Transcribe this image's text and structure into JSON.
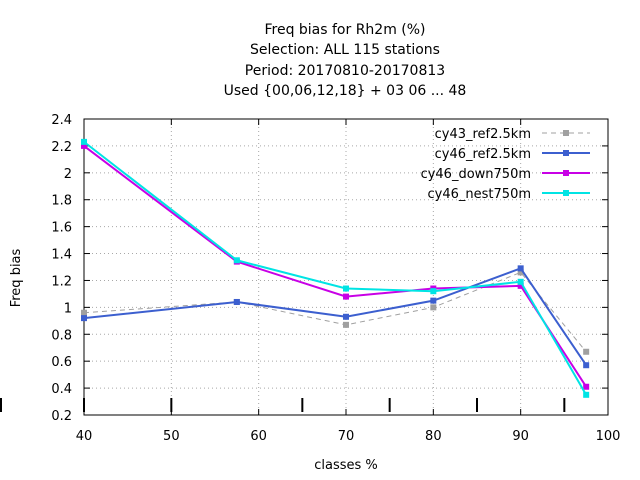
{
  "chart_data": {
    "type": "line",
    "title_lines": [
      "Freq bias  for Rh2m (%)",
      "Selection: ALL     115 stations",
      "Period: 20170810-20170813",
      "Used {00,06,12,18} + 03 06 ... 48"
    ],
    "xlabel": "classes %",
    "ylabel": "Freq bias",
    "xlim": [
      40,
      100
    ],
    "ylim": [
      0.2,
      2.4
    ],
    "x_ticks": [
      40,
      50,
      60,
      70,
      80,
      90,
      100
    ],
    "y_ticks": [
      0.2,
      0.4,
      0.6,
      0.8,
      1,
      1.2,
      1.4,
      1.6,
      1.8,
      2,
      2.2,
      2.4
    ],
    "x_tick_labels": [
      "40",
      "50",
      "60",
      "70",
      "80",
      "90",
      "100"
    ],
    "y_tick_labels": [
      "0.2",
      "0.4",
      "0.6",
      "0.8",
      "1",
      "1.2",
      "1.4",
      "1.6",
      "1.8",
      "2",
      "2.2",
      "2.4"
    ],
    "grid": true,
    "legend_position": "top-right",
    "class_boundaries": [
      40,
      50,
      65,
      75,
      85,
      95
    ],
    "series": [
      {
        "name": "cy43_ref2.5km",
        "color": "#a0a0a0",
        "dashed": true,
        "x": [
          40,
          57.5,
          70,
          80,
          90,
          97.5
        ],
        "y": [
          0.96,
          1.04,
          0.87,
          1.0,
          1.26,
          0.67
        ]
      },
      {
        "name": "cy46_ref2.5km",
        "color": "#3c5fcf",
        "dashed": false,
        "x": [
          40,
          57.5,
          70,
          80,
          90,
          97.5
        ],
        "y": [
          0.92,
          1.04,
          0.93,
          1.05,
          1.29,
          0.57
        ]
      },
      {
        "name": "cy46_down750m",
        "color": "#c800e6",
        "dashed": false,
        "x": [
          40,
          57.5,
          70,
          80,
          90,
          97.5
        ],
        "y": [
          2.2,
          1.34,
          1.08,
          1.14,
          1.16,
          0.41
        ]
      },
      {
        "name": "cy46_nest750m",
        "color": "#00e4e4",
        "dashed": false,
        "x": [
          40,
          57.5,
          70,
          80,
          90,
          97.5
        ],
        "y": [
          2.23,
          1.35,
          1.14,
          1.12,
          1.19,
          0.35
        ]
      }
    ]
  }
}
